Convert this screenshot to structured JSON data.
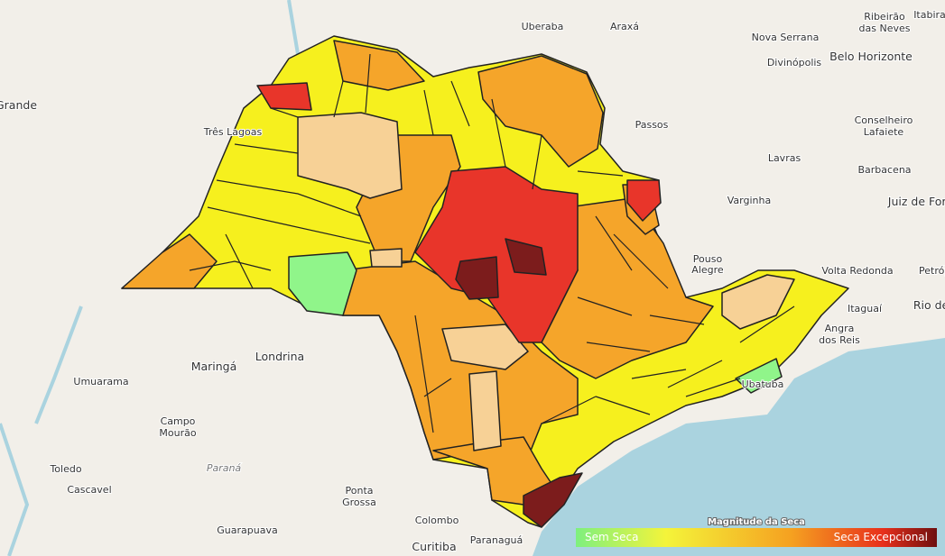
{
  "legend": {
    "title": "Magnitude da Seca",
    "min_label": "Sem Seca",
    "max_label": "Seca Excepcional"
  },
  "places": [
    "Uberaba",
    "Araxá",
    "Ribeirão",
    "das Neves",
    "Itabira",
    "Nova Serrana",
    "Divinópolis",
    "Belo Horizonte",
    "Grande",
    "Três Lagoas",
    "Passos",
    "Conselheiro",
    "Lafaiete",
    "Barbacena",
    "Lavras",
    "Varginha",
    "Juiz de Fora",
    "Pouso",
    "Alegre",
    "Volta Redonda",
    "Petrópolis",
    "Itaguaí",
    "Rio de Janeiro",
    "Angra",
    "dos Reis",
    "Maringá",
    "Londrina",
    "Umuarama",
    "Campo",
    "Mourão",
    "Toledo",
    "Cascavel",
    "Paraná",
    "Ponta",
    "Grossa",
    "Guarapuava",
    "Colombo",
    "Curitiba",
    "Paranaguá",
    "Ubatuba"
  ]
}
